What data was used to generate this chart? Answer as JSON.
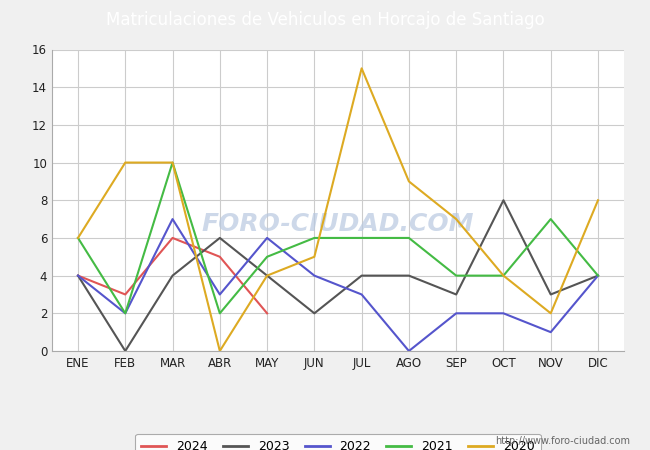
{
  "title": "Matriculaciones de Vehiculos en Horcajo de Santiago",
  "months": [
    "ENE",
    "FEB",
    "MAR",
    "ABR",
    "MAY",
    "JUN",
    "JUL",
    "AGO",
    "SEP",
    "OCT",
    "NOV",
    "DIC"
  ],
  "series": {
    "2024": [
      4,
      3,
      6,
      5,
      2,
      null,
      null,
      null,
      null,
      null,
      null,
      null
    ],
    "2023": [
      4,
      0,
      4,
      6,
      4,
      2,
      4,
      4,
      3,
      8,
      3,
      4
    ],
    "2022": [
      4,
      2,
      7,
      3,
      6,
      4,
      3,
      0,
      2,
      2,
      1,
      4
    ],
    "2021": [
      6,
      2,
      10,
      2,
      5,
      6,
      6,
      6,
      4,
      4,
      7,
      4
    ],
    "2020": [
      6,
      10,
      10,
      0,
      4,
      5,
      15,
      9,
      7,
      4,
      2,
      8
    ]
  },
  "colors": {
    "2024": "#e05555",
    "2023": "#555555",
    "2022": "#5555cc",
    "2021": "#44bb44",
    "2020": "#ddaa22"
  },
  "ylim": [
    0,
    16
  ],
  "yticks": [
    0,
    2,
    4,
    6,
    8,
    10,
    12,
    14,
    16
  ],
  "title_color": "#ffffff",
  "title_bg_color": "#4a7abf",
  "plot_bg_color": "#ffffff",
  "fig_bg_color": "#f0f0f0",
  "grid_color": "#cccccc",
  "watermark": "FORO-CIUDAD.COM",
  "url": "http://www.foro-ciudad.com",
  "legend_years": [
    "2024",
    "2023",
    "2022",
    "2021",
    "2020"
  ]
}
